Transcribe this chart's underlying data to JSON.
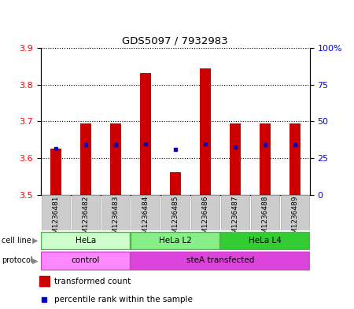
{
  "title": "GDS5097 / 7932983",
  "samples": [
    "GSM1236481",
    "GSM1236482",
    "GSM1236483",
    "GSM1236484",
    "GSM1236485",
    "GSM1236486",
    "GSM1236487",
    "GSM1236488",
    "GSM1236489"
  ],
  "red_tops": [
    3.625,
    3.695,
    3.695,
    3.832,
    3.562,
    3.845,
    3.695,
    3.695,
    3.695
  ],
  "blue_y": [
    3.626,
    3.636,
    3.636,
    3.638,
    3.624,
    3.638,
    3.63,
    3.636,
    3.636
  ],
  "bar_bottom": 3.5,
  "ylim_left": [
    3.5,
    3.9
  ],
  "ylim_right": [
    0,
    100
  ],
  "yticks_left": [
    3.5,
    3.6,
    3.7,
    3.8,
    3.9
  ],
  "yticks_right": [
    0,
    25,
    50,
    75,
    100
  ],
  "ytick_right_labels": [
    "0",
    "25",
    "50",
    "75",
    "100%"
  ],
  "red_color": "#cc0000",
  "blue_color": "#0000cc",
  "cell_line_groups": [
    {
      "label": "HeLa",
      "start": 0,
      "end": 3,
      "color": "#ccffcc",
      "edge": "#44bb44"
    },
    {
      "label": "HeLa L2",
      "start": 3,
      "end": 6,
      "color": "#88ee88",
      "edge": "#44bb44"
    },
    {
      "label": "HeLa L4",
      "start": 6,
      "end": 9,
      "color": "#33cc33",
      "edge": "#44bb44"
    }
  ],
  "protocol_groups": [
    {
      "label": "control",
      "start": 0,
      "end": 3,
      "color": "#ff88ff",
      "edge": "#cc44cc"
    },
    {
      "label": "steA transfected",
      "start": 3,
      "end": 9,
      "color": "#dd44dd",
      "edge": "#cc44cc"
    }
  ],
  "bg_color": "#cccccc",
  "plot_bg": "#ffffff",
  "bar_width": 0.38,
  "blue_size": 3.5
}
